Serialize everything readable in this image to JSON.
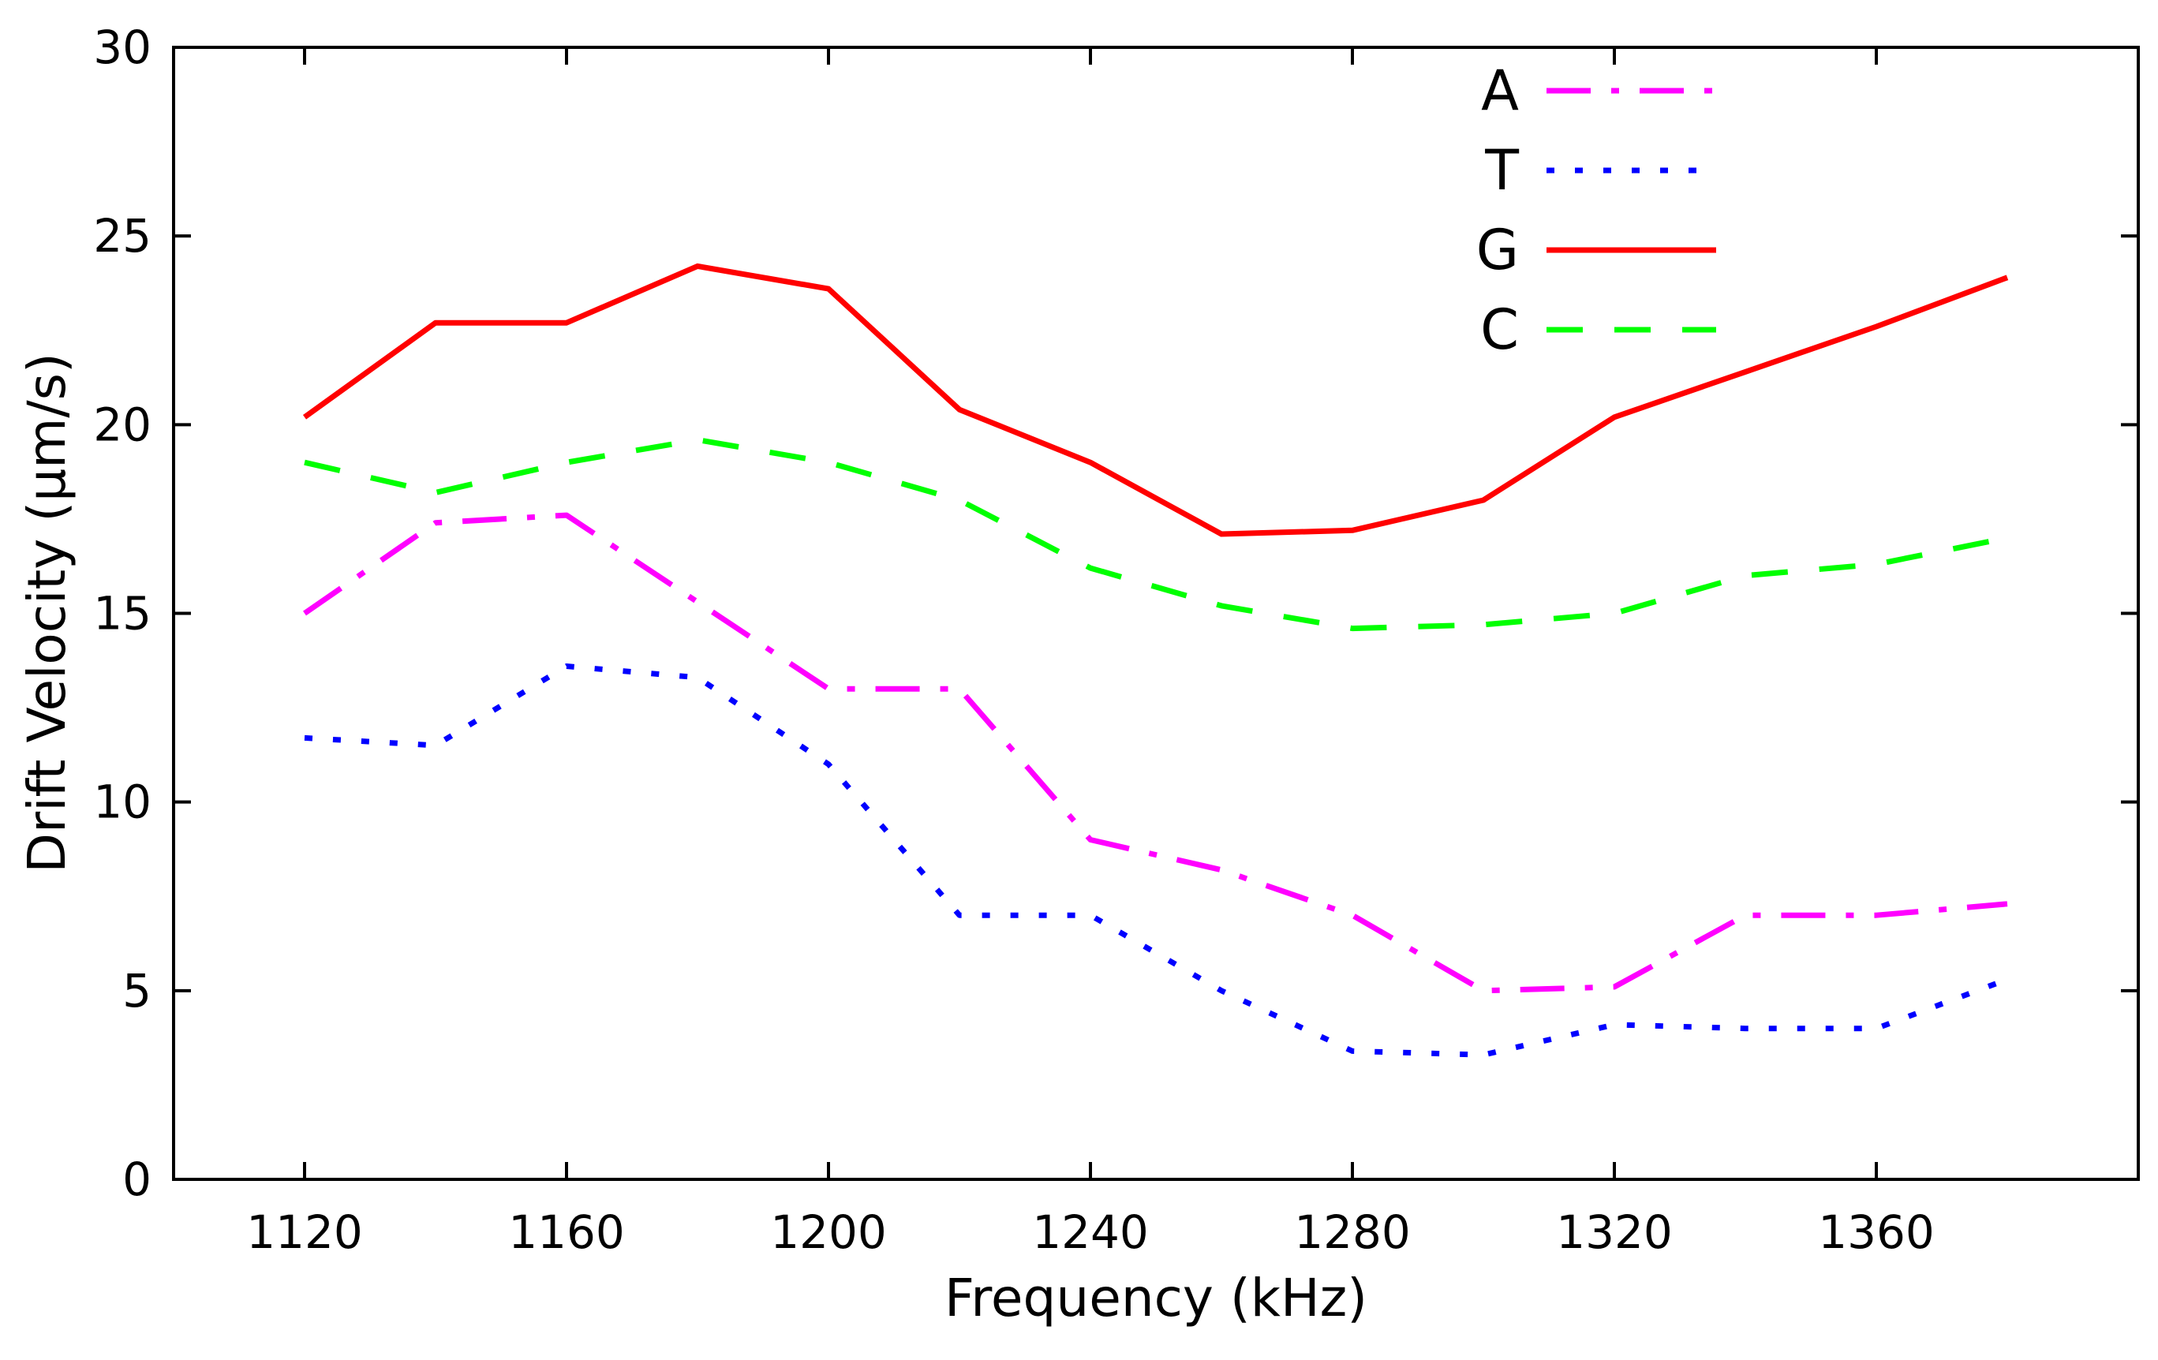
{
  "chart_data": {
    "type": "line",
    "title": "",
    "xlabel": "Frequency (kHz)",
    "ylabel": "Drift Velocity (μm/s)",
    "xlim": [
      1100,
      1400
    ],
    "ylim": [
      0,
      30
    ],
    "xticks": [
      1120,
      1160,
      1200,
      1240,
      1280,
      1320,
      1360
    ],
    "yticks": [
      0,
      5,
      10,
      15,
      20,
      25,
      30
    ],
    "x": [
      1120,
      1140,
      1160,
      1180,
      1200,
      1220,
      1240,
      1260,
      1280,
      1300,
      1320,
      1340,
      1360,
      1380
    ],
    "grid": false,
    "legend_position": "top-right",
    "series": [
      {
        "name": "A",
        "color": "#ff00ff",
        "dash": "dash-dot",
        "values": [
          15.0,
          17.4,
          17.6,
          15.3,
          13.0,
          13.0,
          9.0,
          8.2,
          7.0,
          5.0,
          5.1,
          7.0,
          7.0,
          7.3
        ]
      },
      {
        "name": "T",
        "color": "#0000ff",
        "dash": "dotted",
        "values": [
          11.7,
          11.5,
          13.6,
          13.3,
          11.0,
          7.0,
          7.0,
          5.0,
          3.4,
          3.3,
          4.1,
          4.0,
          4.0,
          5.3
        ]
      },
      {
        "name": "G",
        "color": "#ff0000",
        "dash": "solid",
        "values": [
          20.2,
          22.7,
          22.7,
          24.2,
          23.6,
          20.4,
          19.0,
          17.1,
          17.2,
          18.0,
          20.2,
          21.4,
          22.6,
          23.9
        ]
      },
      {
        "name": "C",
        "color": "#00ff00",
        "dash": "dashed",
        "values": [
          19.0,
          18.2,
          19.0,
          19.6,
          19.0,
          18.0,
          16.2,
          15.2,
          14.6,
          14.7,
          15.0,
          16.0,
          16.3,
          17.0
        ]
      }
    ]
  }
}
